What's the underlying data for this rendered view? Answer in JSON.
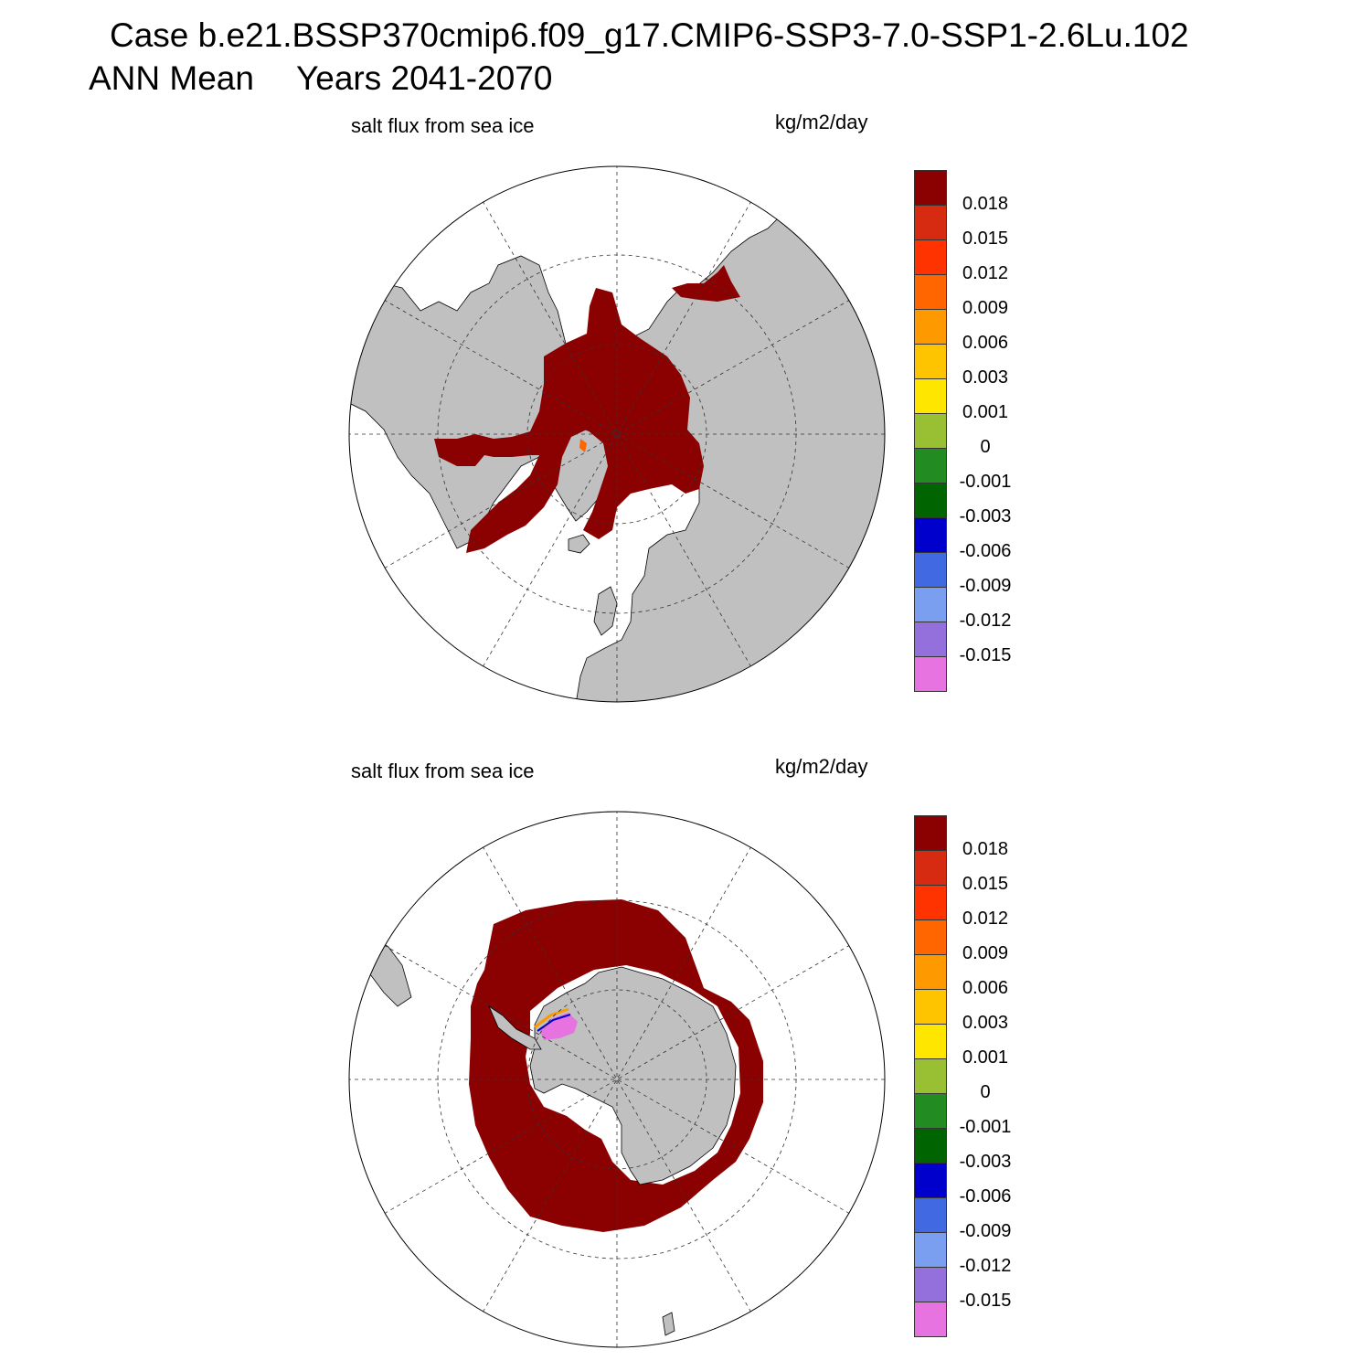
{
  "header": {
    "case_line": "Case b.e21.BSSP370cmip6.f09_g17.CMIP6-SSP3-7.0-SSP1-2.6Lu.102",
    "mean_label": "ANN Mean",
    "years_label": "Years 2041-2070"
  },
  "panels": [
    {
      "id": "north",
      "hemisphere": "Northern Hemisphere (polar stereographic)",
      "variable_label": "salt flux from sea ice",
      "units": "kg/m2/day"
    },
    {
      "id": "south",
      "hemisphere": "Southern Hemisphere (polar stereographic)",
      "variable_label": "salt flux from sea ice",
      "units": "kg/m2/day"
    }
  ],
  "colorbar": {
    "colors": [
      "#8b0000",
      "#d62b10",
      "#ff3300",
      "#ff6600",
      "#ff9900",
      "#ffc400",
      "#ffe600",
      "#99bf33",
      "#228b22",
      "#006400",
      "#0000cd",
      "#4169e1",
      "#7b9ff0",
      "#9370db",
      "#e673e0"
    ],
    "labels": [
      "0.018",
      "0.015",
      "0.012",
      "0.009",
      "0.006",
      "0.003",
      "0.001",
      "0",
      "-0.001",
      "-0.003",
      "-0.006",
      "-0.009",
      "-0.012",
      "-0.015"
    ]
  },
  "map_style": {
    "land": "#c0c0c0",
    "ice_flux_max": "#8b0000",
    "ocean": "#ffffff",
    "graticule": "dashed"
  }
}
